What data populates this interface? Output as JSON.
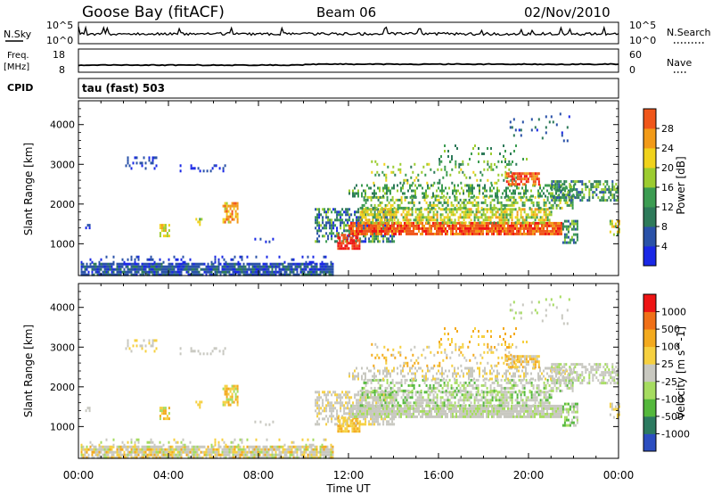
{
  "header": {
    "station": "Goose Bay (fitACF)",
    "beam": "Beam 06",
    "date": "02/Nov/2010"
  },
  "labels": {
    "nsky": "N.Sky",
    "nsearch": "N.Search",
    "freq_top": "Freq.",
    "freq_unit": "[MHz]",
    "nave": "Nave",
    "cpid": "CPID",
    "cpid_value": "tau (fast) 503"
  },
  "colors": {
    "power": [
      "#1a28e6",
      "#2a52a8",
      "#2e7a5a",
      "#3c9c52",
      "#9ccc30",
      "#f0d21c",
      "#f29a18",
      "#f0561a",
      "#f01414"
    ],
    "velocity": [
      "#ee1414",
      "#f07018",
      "#f3aa1e",
      "#f6d040",
      "#c8c8c0",
      "#a6dc60",
      "#54b83c",
      "#2c7a60",
      "#2c4ec0"
    ]
  },
  "chart_data": [
    {
      "type": "line",
      "name": "nsky-nsearch-panel",
      "y_left_ticks": [
        "10^5",
        "10^0"
      ],
      "y_right_ticks": [
        "10^5",
        "10^0"
      ],
      "x_range": [
        0,
        24
      ]
    },
    {
      "type": "line",
      "name": "freq-nave-panel",
      "y_left_ticks": [
        "18",
        "8"
      ],
      "y_right_ticks": [
        "60",
        "0"
      ],
      "freq_value_mhz": 10.5,
      "x_range": [
        0,
        24
      ]
    },
    {
      "type": "heatmap",
      "name": "power-panel",
      "ylabel": "Slant Range [km]",
      "y_ticks": [
        1000,
        2000,
        3000,
        4000
      ],
      "y_range": [
        200,
        4600
      ],
      "x_range": [
        0,
        24
      ],
      "colorbar": {
        "label": "Power [dB]",
        "ticks": [
          "4",
          "8",
          "12",
          "16",
          "20",
          "24",
          "28"
        ],
        "range": [
          0,
          32
        ]
      }
    },
    {
      "type": "heatmap",
      "name": "velocity-panel",
      "ylabel": "Slant Range [km]",
      "xlabel": "Time UT",
      "x_ticks": [
        "00:00",
        "04:00",
        "08:00",
        "12:00",
        "16:00",
        "20:00",
        "00:00"
      ],
      "y_ticks": [
        1000,
        2000,
        3000,
        4000
      ],
      "y_range": [
        200,
        4600
      ],
      "x_range": [
        0,
        24
      ],
      "colorbar": {
        "label": "Velocity [m s^-1]",
        "ticks": [
          "1000",
          "500",
          "100",
          "25",
          "-25",
          "-100",
          "-500",
          "-1000"
        ]
      }
    }
  ]
}
